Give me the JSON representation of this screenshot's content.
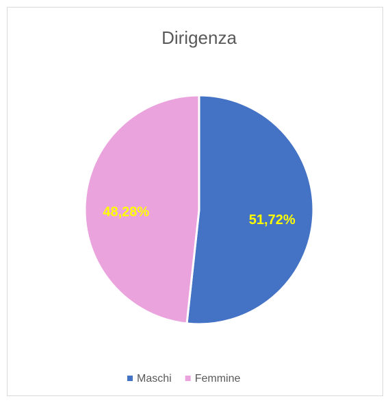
{
  "chart_data": {
    "type": "pie",
    "title": "Dirigenza",
    "categories": [
      "Maschi",
      "Femmine"
    ],
    "values": [
      51.72,
      48.28
    ],
    "value_labels": [
      "51,72%",
      "48,28%"
    ],
    "colors": [
      "#4472c4",
      "#eba3dd"
    ],
    "legend": "bottom"
  }
}
